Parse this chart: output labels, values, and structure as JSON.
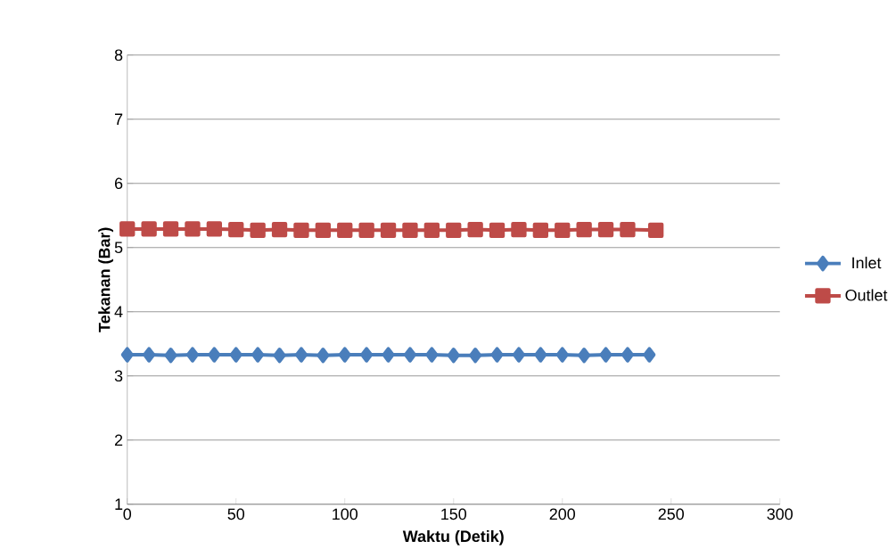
{
  "chart_data": {
    "type": "line",
    "xlabel": "Waktu (Detik)",
    "ylabel": "Tekanan (Bar)",
    "xlim": [
      0,
      300
    ],
    "xticks": [
      0,
      50,
      100,
      150,
      200,
      250,
      300
    ],
    "ylim": [
      1,
      8
    ],
    "yticks": [
      1,
      2,
      3,
      4,
      5,
      6,
      7,
      8
    ],
    "grid": "y",
    "legend": "right",
    "line_style": "solid",
    "series": [
      {
        "name": "Inlet",
        "color": "#4a7ebb",
        "marker": "diamond",
        "x": [
          0,
          10,
          20,
          30,
          40,
          50,
          60,
          70,
          80,
          90,
          100,
          110,
          120,
          130,
          140,
          150,
          160,
          170,
          180,
          190,
          200,
          210,
          220,
          230,
          240
        ],
        "values": [
          3.33,
          3.33,
          3.32,
          3.33,
          3.33,
          3.33,
          3.33,
          3.32,
          3.33,
          3.32,
          3.33,
          3.33,
          3.33,
          3.33,
          3.33,
          3.32,
          3.32,
          3.33,
          3.33,
          3.33,
          3.33,
          3.32,
          3.33,
          3.33,
          3.33
        ]
      },
      {
        "name": "Outlet",
        "color": "#be4b48",
        "marker": "square",
        "x": [
          0,
          10,
          20,
          30,
          40,
          50,
          60,
          70,
          80,
          90,
          100,
          110,
          120,
          130,
          140,
          150,
          160,
          170,
          180,
          190,
          200,
          210,
          220,
          230,
          243
        ],
        "values": [
          5.29,
          5.29,
          5.29,
          5.29,
          5.29,
          5.28,
          5.27,
          5.28,
          5.27,
          5.27,
          5.27,
          5.27,
          5.27,
          5.27,
          5.27,
          5.27,
          5.28,
          5.27,
          5.28,
          5.27,
          5.27,
          5.28,
          5.28,
          5.28,
          5.27
        ]
      }
    ]
  }
}
